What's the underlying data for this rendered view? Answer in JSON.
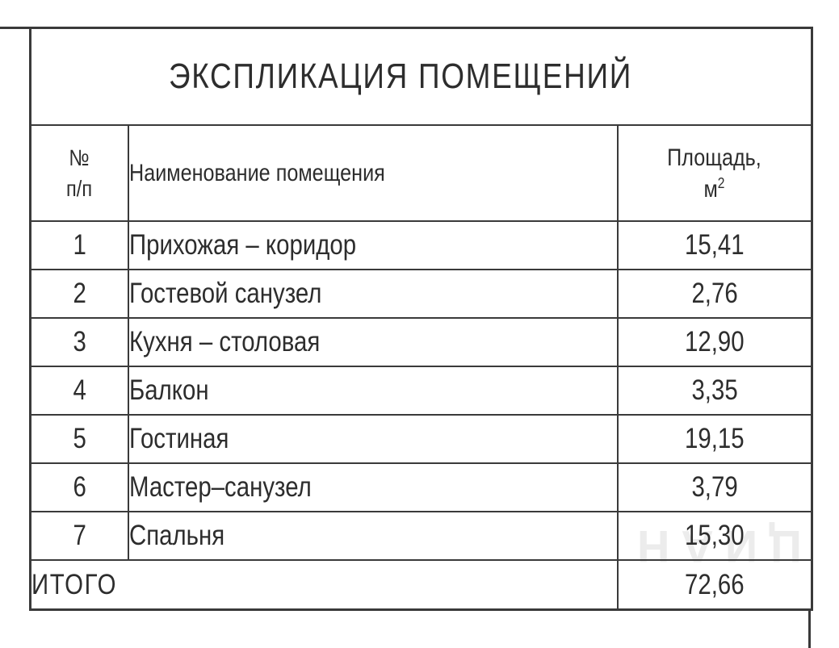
{
  "colors": {
    "line": "#3a3a3a",
    "text": "#2d2d2d",
    "watermark": "#ececec",
    "background": "#ffffff"
  },
  "table": {
    "title": "ЭКСПЛИКАЦИЯ ПОМЕЩЕНИЙ",
    "header": {
      "num_line1": "№",
      "num_line2": "п/п",
      "name": "Наименование помещения",
      "area_line1": "Площадь,",
      "area_unit": "м",
      "area_exponent": "2"
    },
    "rows": [
      {
        "num": "1",
        "name": "Прихожая – коридор",
        "area": "15,41"
      },
      {
        "num": "2",
        "name": "Гостевой санузел",
        "area": "2,76"
      },
      {
        "num": "3",
        "name": "Кухня – столовая",
        "area": "12,90"
      },
      {
        "num": "4",
        "name": "Балкон",
        "area": "3,35"
      },
      {
        "num": "5",
        "name": "Гостиная",
        "area": "19,15"
      },
      {
        "num": "6",
        "name": "Мастер–санузел",
        "area": "3,79"
      },
      {
        "num": "7",
        "name": "Спальня",
        "area": "15,30"
      }
    ],
    "total": {
      "label": "ИТОГО",
      "area": "72,66"
    }
  },
  "watermark": {
    "text": "ЦИАН"
  }
}
